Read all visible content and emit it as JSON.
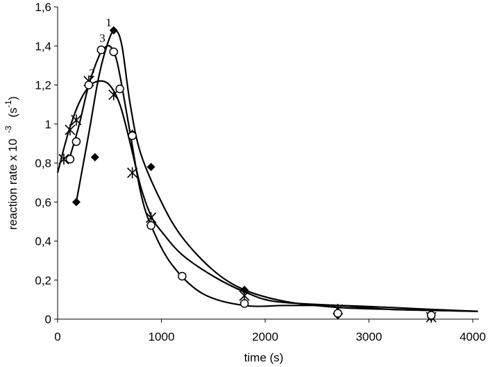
{
  "chart_data": {
    "type": "scatter",
    "x_label": "time (s)",
    "y_label": {
      "text": "reaction rate x 10",
      "exponent": "-3",
      "unit": "(s",
      "unit_exponent": "-1",
      "unit_close": ")"
    },
    "xlim": [
      0,
      4000
    ],
    "ylim": [
      0,
      1.6
    ],
    "xticks": [
      0,
      1000,
      2000,
      3000,
      4000
    ],
    "yticks": [
      0,
      {
        "value": 0.2,
        "label": "0,2"
      },
      {
        "value": 0.4,
        "label": "0,4"
      },
      {
        "value": 0.6,
        "label": "0,6"
      },
      {
        "value": 0.8,
        "label": "0,8"
      },
      1,
      {
        "value": 1.2,
        "label": "1,2"
      },
      {
        "value": 1.4,
        "label": "1,4"
      },
      {
        "value": 1.6,
        "label": "1,6"
      }
    ],
    "grid": false,
    "series": [
      {
        "name": "1",
        "marker": "diamond",
        "color": "#000000",
        "x": [
          180,
          360,
          540,
          720,
          900,
          1800,
          2700,
          3600
        ],
        "values": [
          0.6,
          0.83,
          1.48,
          0.95,
          0.78,
          0.15,
          0.02,
          0.01
        ],
        "curve": {
          "x": [
            180,
            300,
            400,
            500,
            560,
            620,
            700,
            800,
            1000,
            1200,
            1500,
            1800,
            2200,
            2700,
            3200,
            3600,
            4050
          ],
          "y": [
            0.6,
            0.95,
            1.25,
            1.44,
            1.48,
            1.4,
            1.1,
            0.85,
            0.6,
            0.42,
            0.25,
            0.15,
            0.09,
            0.06,
            0.05,
            0.045,
            0.04
          ]
        }
      },
      {
        "name": "2",
        "marker": "asterisk",
        "color": "#000000",
        "x": [
          60,
          120,
          180,
          300,
          540,
          720,
          900,
          1800,
          2700,
          3600
        ],
        "values": [
          0.82,
          0.97,
          1.02,
          1.22,
          1.15,
          0.75,
          0.52,
          0.12,
          0.05,
          0.01
        ],
        "curve": {
          "x": [
            0,
            100,
            200,
            300,
            400,
            500,
            600,
            700,
            800,
            900,
            1000,
            1200,
            1500,
            1800,
            2100,
            2700,
            3200,
            3600,
            4050
          ],
          "y": [
            0.75,
            0.95,
            1.1,
            1.19,
            1.22,
            1.2,
            1.1,
            0.9,
            0.68,
            0.53,
            0.45,
            0.33,
            0.22,
            0.14,
            0.09,
            0.07,
            0.05,
            0.045,
            0.04
          ]
        }
      },
      {
        "name": "3",
        "marker": "circle",
        "color": "#000000",
        "x": [
          120,
          180,
          300,
          420,
          540,
          600,
          720,
          900,
          1200,
          1800,
          2700,
          3600
        ],
        "values": [
          0.82,
          0.91,
          1.2,
          1.38,
          1.37,
          1.18,
          0.94,
          0.48,
          0.22,
          0.08,
          0.03,
          0.02
        ],
        "curve": {
          "x": [
            100,
            200,
            300,
            400,
            450,
            500,
            550,
            600,
            700,
            800,
            900,
            1100,
            1400,
            1800,
            2200,
            2700,
            3200,
            3600,
            4050
          ],
          "y": [
            0.8,
            0.98,
            1.2,
            1.35,
            1.39,
            1.4,
            1.36,
            1.25,
            0.95,
            0.65,
            0.48,
            0.28,
            0.13,
            0.07,
            0.07,
            0.07,
            0.06,
            0.05,
            0.04
          ]
        }
      }
    ]
  }
}
